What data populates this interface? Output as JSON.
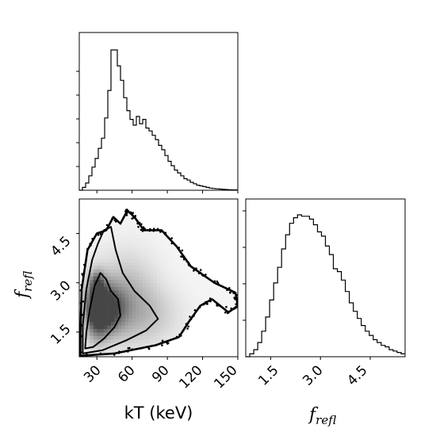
{
  "chart_data": {
    "type": "corner",
    "axes_labels": {
      "x_main": "kT (keV)",
      "f_symbol": "f",
      "f_subscript": "refl"
    },
    "kT_hist": {
      "type": "histogram",
      "x_range": [
        15,
        150
      ],
      "bin_width": 2.7,
      "densities": [
        0,
        0.02,
        0.05,
        0.1,
        0.16,
        0.22,
        0.29,
        0.36,
        0.5,
        0.69,
        0.97,
        0.97,
        0.86,
        0.76,
        0.64,
        0.55,
        0.49,
        0.45,
        0.51,
        0.46,
        0.49,
        0.43,
        0.41,
        0.38,
        0.35,
        0.31,
        0.28,
        0.24,
        0.2,
        0.17,
        0.14,
        0.12,
        0.1,
        0.08,
        0.07,
        0.055,
        0.045,
        0.035,
        0.03,
        0.025,
        0.02,
        0.015,
        0.012,
        0.01,
        0.008,
        0.006,
        0.005,
        0.004,
        0.003,
        0.002
      ]
    },
    "frefl_hist": {
      "type": "histogram",
      "x_range": [
        0.75,
        5.55
      ],
      "bin_width": 0.12,
      "densities": [
        0,
        0.02,
        0.05,
        0.1,
        0.18,
        0.28,
        0.4,
        0.52,
        0.63,
        0.76,
        0.86,
        0.94,
        0.98,
        1.0,
        0.99,
        0.99,
        0.97,
        0.93,
        0.88,
        0.85,
        0.78,
        0.72,
        0.62,
        0.6,
        0.54,
        0.46,
        0.38,
        0.32,
        0.27,
        0.22,
        0.18,
        0.15,
        0.12,
        0.1,
        0.08,
        0.07,
        0.05,
        0.04,
        0.03,
        0.02
      ]
    },
    "joint": {
      "type": "2d-density",
      "x_range": [
        15,
        150
      ],
      "y_range": [
        0.75,
        5.55
      ],
      "x_ticks": [
        30,
        60,
        90,
        120,
        150
      ],
      "x_tick_labels": [
        "30",
        "60",
        "90",
        "120",
        "150"
      ],
      "y_ticks": [
        1.5,
        3.0,
        4.5
      ],
      "y_tick_labels": [
        "1.5",
        "3.0",
        "4.5"
      ],
      "contours": [
        [
          [
            20,
            1.0
          ],
          [
            27,
            1.05
          ],
          [
            36,
            1.3
          ],
          [
            45,
            1.65
          ],
          [
            50,
            2.0
          ],
          [
            48,
            2.5
          ],
          [
            42,
            2.75
          ],
          [
            38,
            3.1
          ],
          [
            33,
            3.3
          ],
          [
            28,
            2.9
          ],
          [
            24,
            2.2
          ],
          [
            21,
            1.5
          ]
        ],
        [
          [
            18,
            0.85
          ],
          [
            35,
            0.95
          ],
          [
            55,
            1.25
          ],
          [
            72,
            1.55
          ],
          [
            82,
            1.9
          ],
          [
            75,
            2.3
          ],
          [
            62,
            2.75
          ],
          [
            52,
            3.3
          ],
          [
            46,
            4.0
          ],
          [
            42,
            4.7
          ],
          [
            36,
            4.6
          ],
          [
            31,
            4.2
          ],
          [
            26,
            3.7
          ],
          [
            21,
            2.8
          ],
          [
            18,
            1.7
          ]
        ],
        [
          [
            16,
            0.78
          ],
          [
            45,
            0.85
          ],
          [
            80,
            1.1
          ],
          [
            100,
            1.35
          ],
          [
            108,
            1.8
          ],
          [
            118,
            2.3
          ],
          [
            128,
            2.5
          ],
          [
            142,
            2.1
          ],
          [
            150,
            2.3
          ],
          [
            148,
            2.7
          ],
          [
            130,
            3.0
          ],
          [
            110,
            3.5
          ],
          [
            98,
            4.1
          ],
          [
            85,
            4.6
          ],
          [
            70,
            4.6
          ],
          [
            62,
            5.0
          ],
          [
            56,
            5.2
          ],
          [
            50,
            4.8
          ],
          [
            44,
            5.0
          ],
          [
            38,
            4.6
          ],
          [
            30,
            4.5
          ],
          [
            22,
            4.0
          ],
          [
            17,
            2.8
          ],
          [
            16,
            1.5
          ]
        ]
      ],
      "density_blobs": [
        {
          "x": 30,
          "y": 2.2,
          "sx": 7,
          "sy": 0.6,
          "w": 1.0
        },
        {
          "x": 40,
          "y": 2.2,
          "sx": 10,
          "sy": 0.5,
          "w": 0.8
        },
        {
          "x": 30,
          "y": 3.0,
          "sx": 4,
          "sy": 0.25,
          "w": 0.5
        },
        {
          "x": 55,
          "y": 2.6,
          "sx": 18,
          "sy": 0.9,
          "w": 0.35
        },
        {
          "x": 75,
          "y": 2.0,
          "sx": 20,
          "sy": 0.6,
          "w": 0.2
        }
      ]
    },
    "tick_labels": {
      "joint_x": [
        "30",
        "60",
        "90",
        "120",
        "150"
      ],
      "joint_y": [
        "1.5",
        "3.0",
        "4.5"
      ],
      "frefl_x": [
        "1.5",
        "3.0",
        "4.5"
      ]
    }
  }
}
